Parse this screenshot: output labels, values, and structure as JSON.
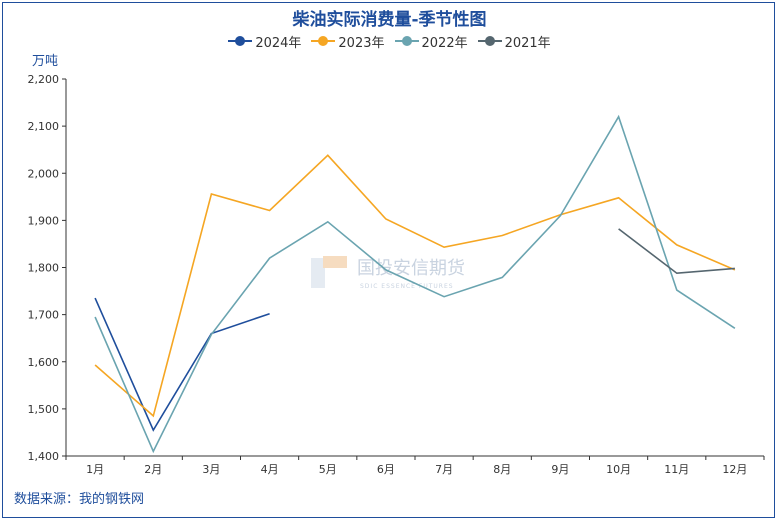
{
  "chart_data": {
    "type": "line",
    "title": "柴油实际消费量-季节性图",
    "ylabel": "万吨",
    "categories": [
      "1月",
      "2月",
      "3月",
      "4月",
      "5月",
      "6月",
      "7月",
      "8月",
      "9月",
      "10月",
      "11月",
      "12月"
    ],
    "y_ticks": [
      "1,400",
      "1,500",
      "1,600",
      "1,700",
      "1,800",
      "1,900",
      "2,000",
      "2,100",
      "2,200"
    ],
    "ylim": [
      1400,
      2200
    ],
    "grid": false,
    "legend": "top-center",
    "series": [
      {
        "name": "2024年",
        "color": "#1f4e9c",
        "values": [
          1735,
          1455,
          1660,
          1702,
          null,
          null,
          null,
          null,
          null,
          null,
          null,
          null
        ]
      },
      {
        "name": "2023年",
        "color": "#f5a623",
        "values": [
          1593,
          1485,
          1956,
          1921,
          2038,
          1903,
          1843,
          1868,
          1912,
          1948,
          1848,
          1795
        ]
      },
      {
        "name": "2022年",
        "color": "#6aa4b0",
        "values": [
          1695,
          1410,
          1658,
          1820,
          1897,
          1795,
          1738,
          1779,
          1910,
          2120,
          1752,
          1671
        ]
      },
      {
        "name": "2021年",
        "color": "#55666f",
        "values": [
          null,
          null,
          null,
          null,
          null,
          null,
          null,
          null,
          null,
          1882,
          1788,
          1798
        ]
      }
    ]
  },
  "watermark": {
    "text": "国投安信期货",
    "sub": "SDIC ESSENCE FUTURES"
  },
  "source": "数据来源：我的钢铁网"
}
